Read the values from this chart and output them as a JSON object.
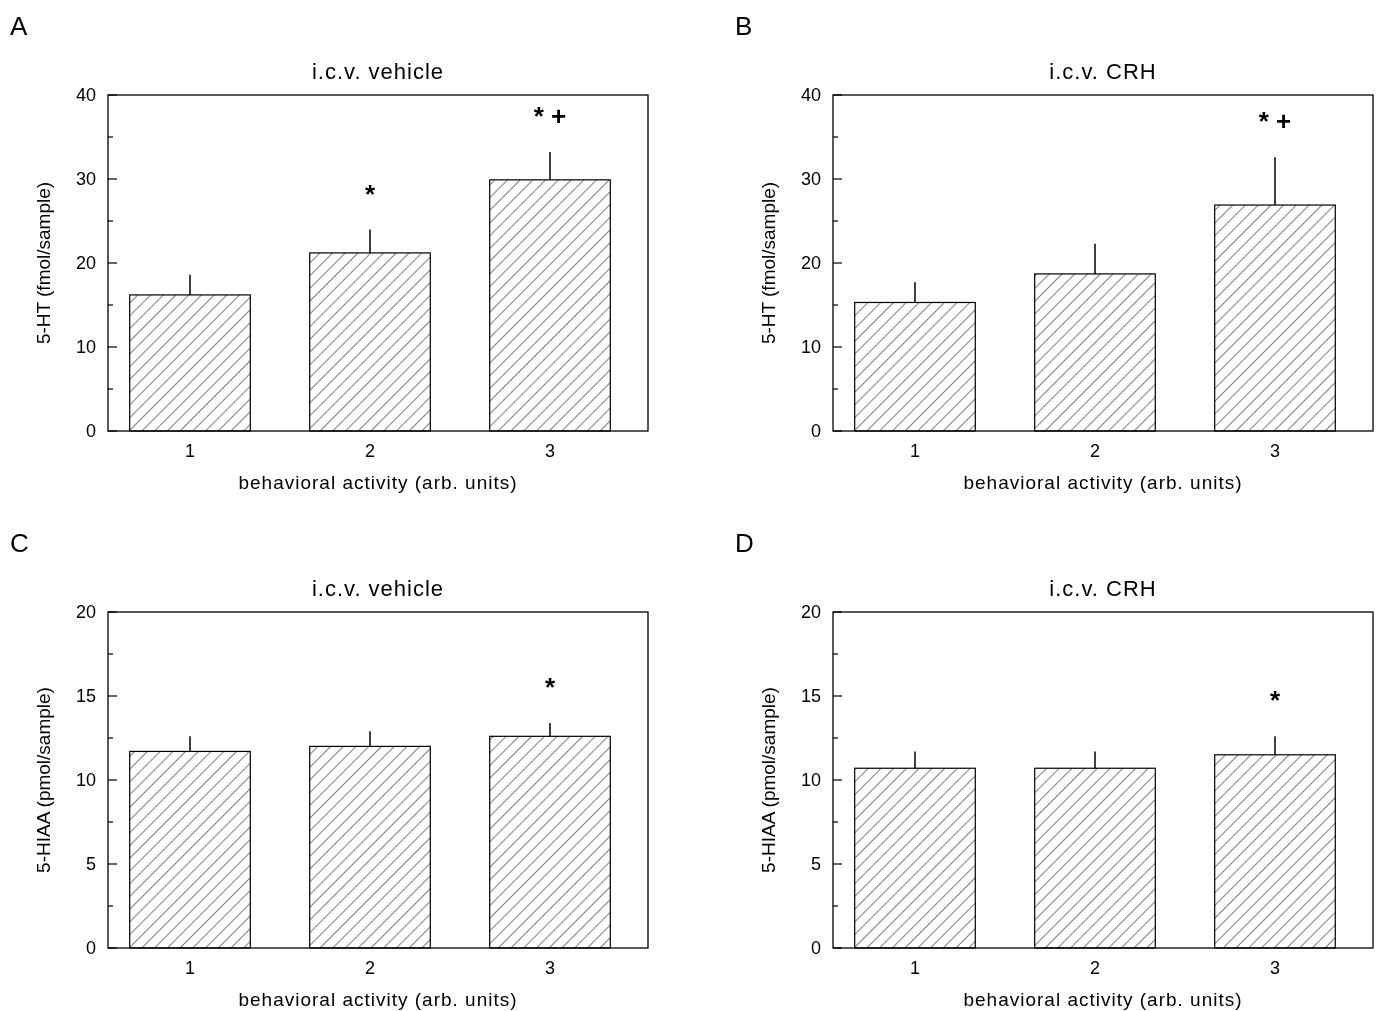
{
  "chart_data": [
    {
      "type": "bar",
      "title": "i.c.v. vehicle",
      "xlabel": "behavioral activity (arb. units)",
      "ylabel": "5-HT (fmol/sample)",
      "categories": [
        "1",
        "2",
        "3"
      ],
      "values": [
        16.2,
        21.2,
        29.9
      ],
      "errors": [
        [
          16.2,
          18.6
        ],
        [
          21.2,
          24.0
        ],
        [
          29.9,
          33.2
        ]
      ],
      "color": "#000000",
      "ylim": [
        0,
        40
      ],
      "yticks": [
        0,
        {
          "value": 5,
          "label": null
        },
        10,
        {
          "value": 15,
          "label": null
        },
        20,
        {
          "value": 25,
          "label": null
        },
        30,
        {
          "value": 35,
          "label": null
        },
        40
      ],
      "annotations": [
        "A",
        "*",
        "* +"
      ]
    },
    {
      "type": "bar",
      "title": "i.c.v. CRH",
      "xlabel": "behavioral activity (arb. units)",
      "ylabel": "5-HT (fmol/sample)",
      "categories": [
        "1",
        "2",
        "3"
      ],
      "values": [
        15.3,
        18.7,
        26.9
      ],
      "errors": [
        [
          15.3,
          17.7
        ],
        [
          18.7,
          22.3
        ],
        [
          26.9,
          32.6
        ]
      ],
      "color": "#000000",
      "ylim": [
        0,
        40
      ],
      "yticks": [
        0,
        {
          "value": 5,
          "label": null
        },
        10,
        {
          "value": 15,
          "label": null
        },
        20,
        {
          "value": 25,
          "label": null
        },
        30,
        {
          "value": 35,
          "label": null
        },
        40
      ],
      "annotations": [
        "B",
        "* +"
      ]
    },
    {
      "type": "bar",
      "title": "i.c.v. vehicle",
      "xlabel": "behavioral activity (arb. units)",
      "ylabel": "5-HIAA (pmol/sample)",
      "categories": [
        "1",
        "2",
        "3"
      ],
      "values": [
        11.7,
        12.0,
        12.6
      ],
      "errors": [
        [
          11.7,
          12.6
        ],
        [
          12.0,
          12.9
        ],
        [
          12.6,
          13.4
        ]
      ],
      "color": "#000000",
      "ylim": [
        0,
        20
      ],
      "yticks": [
        0,
        {
          "value": 2.5,
          "label": null
        },
        5,
        {
          "value": 7.5,
          "label": null
        },
        10,
        {
          "value": 12.5,
          "label": null
        },
        15,
        {
          "value": 17.5,
          "label": null
        },
        20
      ],
      "annotations": [
        "C",
        "*"
      ]
    },
    {
      "type": "bar",
      "title": "i.c.v. CRH",
      "xlabel": "behavioral activity (arb. units)",
      "ylabel": "5-HIAA (pmol/sample)",
      "categories": [
        "1",
        "2",
        "3"
      ],
      "values": [
        10.7,
        10.7,
        11.5
      ],
      "errors": [
        [
          10.7,
          11.7
        ],
        [
          10.7,
          11.7
        ],
        [
          11.5,
          12.6
        ]
      ],
      "color": "#000000",
      "ylim": [
        0,
        20
      ],
      "yticks": [
        0,
        {
          "value": 2.5,
          "label": null
        },
        5,
        {
          "value": 7.5,
          "label": null
        },
        10,
        {
          "value": 12.5,
          "label": null
        },
        15,
        {
          "value": 17.5,
          "label": null
        },
        20
      ],
      "annotations": [
        "D",
        "*"
      ]
    }
  ]
}
